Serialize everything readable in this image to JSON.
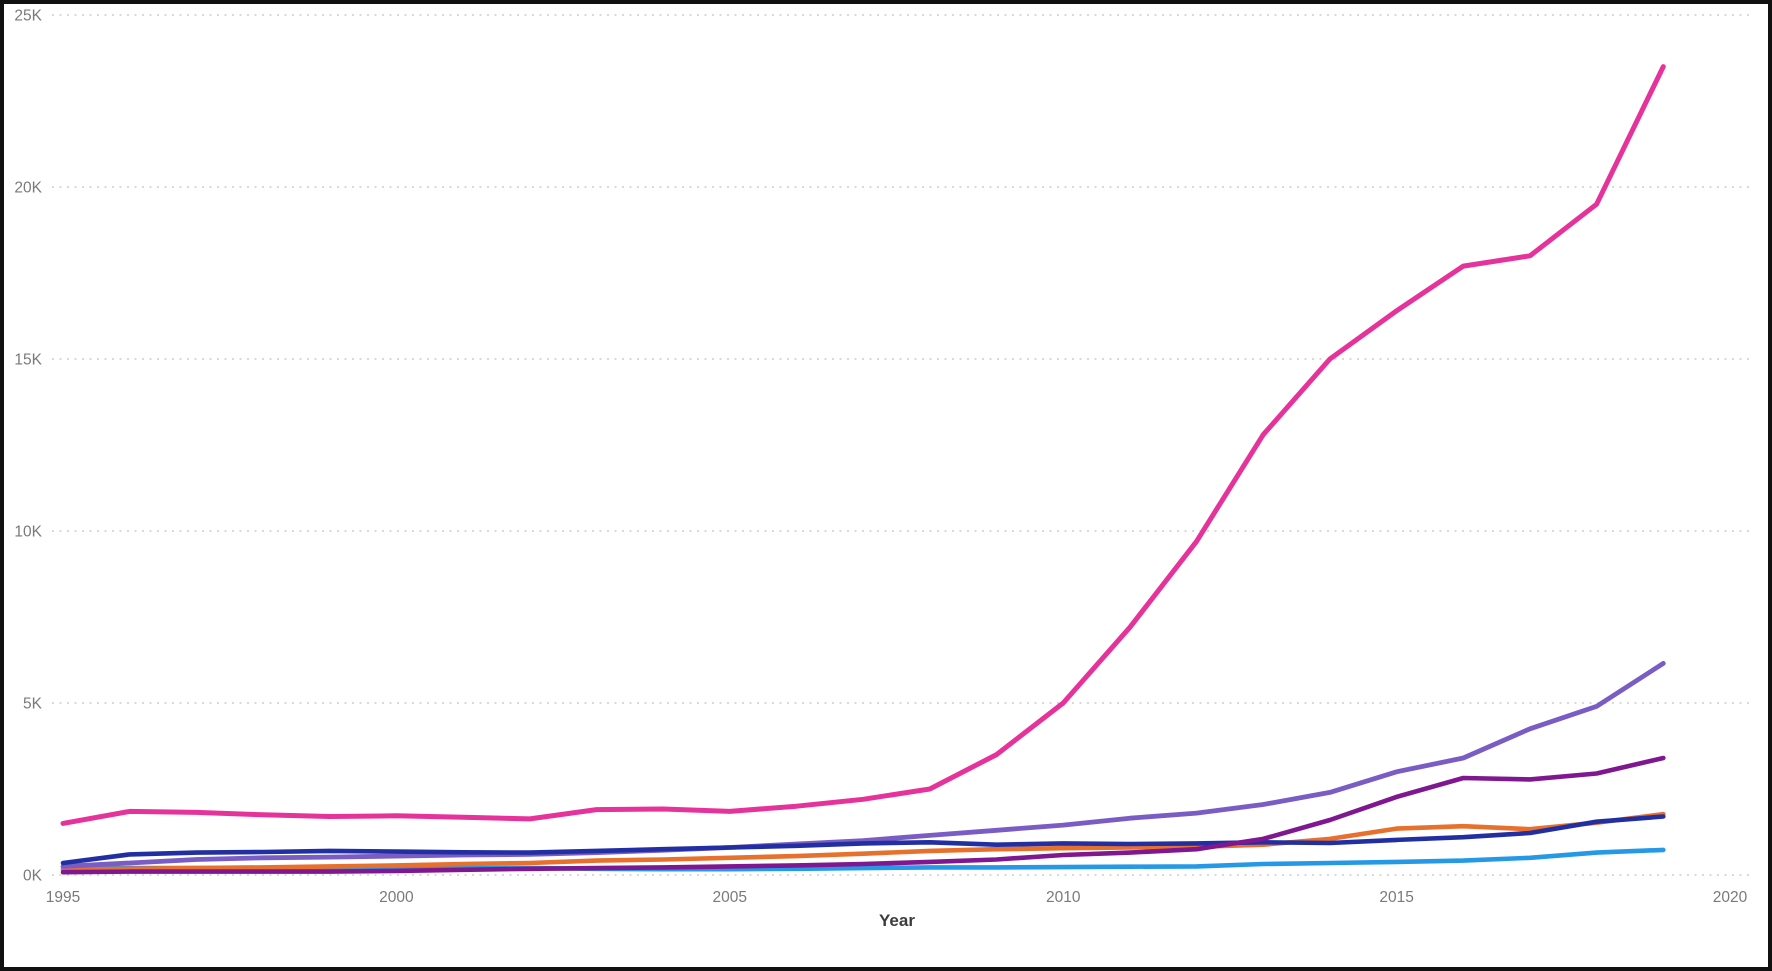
{
  "frame": {
    "background": "#ffffff",
    "border_color": "#111111"
  },
  "chart_data": {
    "type": "line",
    "title": "",
    "xlabel": "Year",
    "ylabel": "",
    "xlim": [
      1995,
      2020
    ],
    "ylim": [
      0,
      25000
    ],
    "grid": "horizontal-dotted",
    "gridline_color": "#d9d9d9",
    "tick_label_color": "#7a7a7a",
    "axis_title_color": "#3d3d3d",
    "legend": "none",
    "x_ticks": [
      1995,
      2000,
      2005,
      2010,
      2015,
      2020
    ],
    "y_ticks": [
      "0K",
      "5K",
      "10K",
      "15K",
      "20K",
      "25K"
    ],
    "y_tick_values": [
      0,
      5000,
      10000,
      15000,
      20000,
      25000
    ],
    "x": [
      1995,
      1996,
      1997,
      1998,
      1999,
      2000,
      2001,
      2002,
      2003,
      2004,
      2005,
      2006,
      2007,
      2008,
      2009,
      2010,
      2011,
      2012,
      2013,
      2014,
      2015,
      2016,
      2017,
      2018,
      2019
    ],
    "series": [
      {
        "name": "light-blue-line",
        "color": "#2699E6",
        "stroke_width": 4.6,
        "values": [
          180,
          200,
          200,
          200,
          200,
          200,
          200,
          200,
          180,
          170,
          170,
          180,
          200,
          220,
          220,
          230,
          240,
          250,
          320,
          350,
          380,
          420,
          500,
          650,
          730
        ]
      },
      {
        "name": "orange-line",
        "color": "#E8702D",
        "stroke_width": 4.6,
        "values": [
          150,
          180,
          200,
          220,
          250,
          280,
          320,
          350,
          420,
          450,
          500,
          550,
          620,
          700,
          750,
          780,
          800,
          820,
          880,
          1050,
          1350,
          1420,
          1330,
          1520,
          1770
        ]
      },
      {
        "name": "violet-line",
        "color": "#7A5CC5",
        "stroke_width": 4.8,
        "values": [
          250,
          350,
          450,
          500,
          520,
          550,
          580,
          600,
          650,
          720,
          800,
          900,
          1000,
          1150,
          1300,
          1450,
          1650,
          1800,
          2050,
          2400,
          3000,
          3400,
          4250,
          4900,
          6150
        ]
      },
      {
        "name": "navy-line",
        "color": "#222FA3",
        "stroke_width": 4.6,
        "values": [
          350,
          600,
          650,
          670,
          700,
          680,
          660,
          650,
          700,
          750,
          800,
          850,
          920,
          950,
          880,
          920,
          900,
          920,
          950,
          930,
          1020,
          1100,
          1220,
          1550,
          1700
        ]
      },
      {
        "name": "dark-purple-line",
        "color": "#7F1790",
        "stroke_width": 4.6,
        "values": [
          80,
          100,
          100,
          100,
          100,
          120,
          150,
          180,
          200,
          220,
          250,
          280,
          320,
          380,
          450,
          580,
          650,
          750,
          1050,
          1600,
          2270,
          2820,
          2780,
          2950,
          3400
        ]
      },
      {
        "name": "pink-line",
        "color": "#E6329B",
        "stroke_width": 5,
        "values": [
          1500,
          1850,
          1820,
          1750,
          1700,
          1720,
          1680,
          1630,
          1900,
          1920,
          1850,
          2000,
          2200,
          2500,
          3500,
          5000,
          7200,
          9700,
          12800,
          15000,
          16400,
          17700,
          18000,
          19500,
          23500
        ]
      }
    ]
  }
}
